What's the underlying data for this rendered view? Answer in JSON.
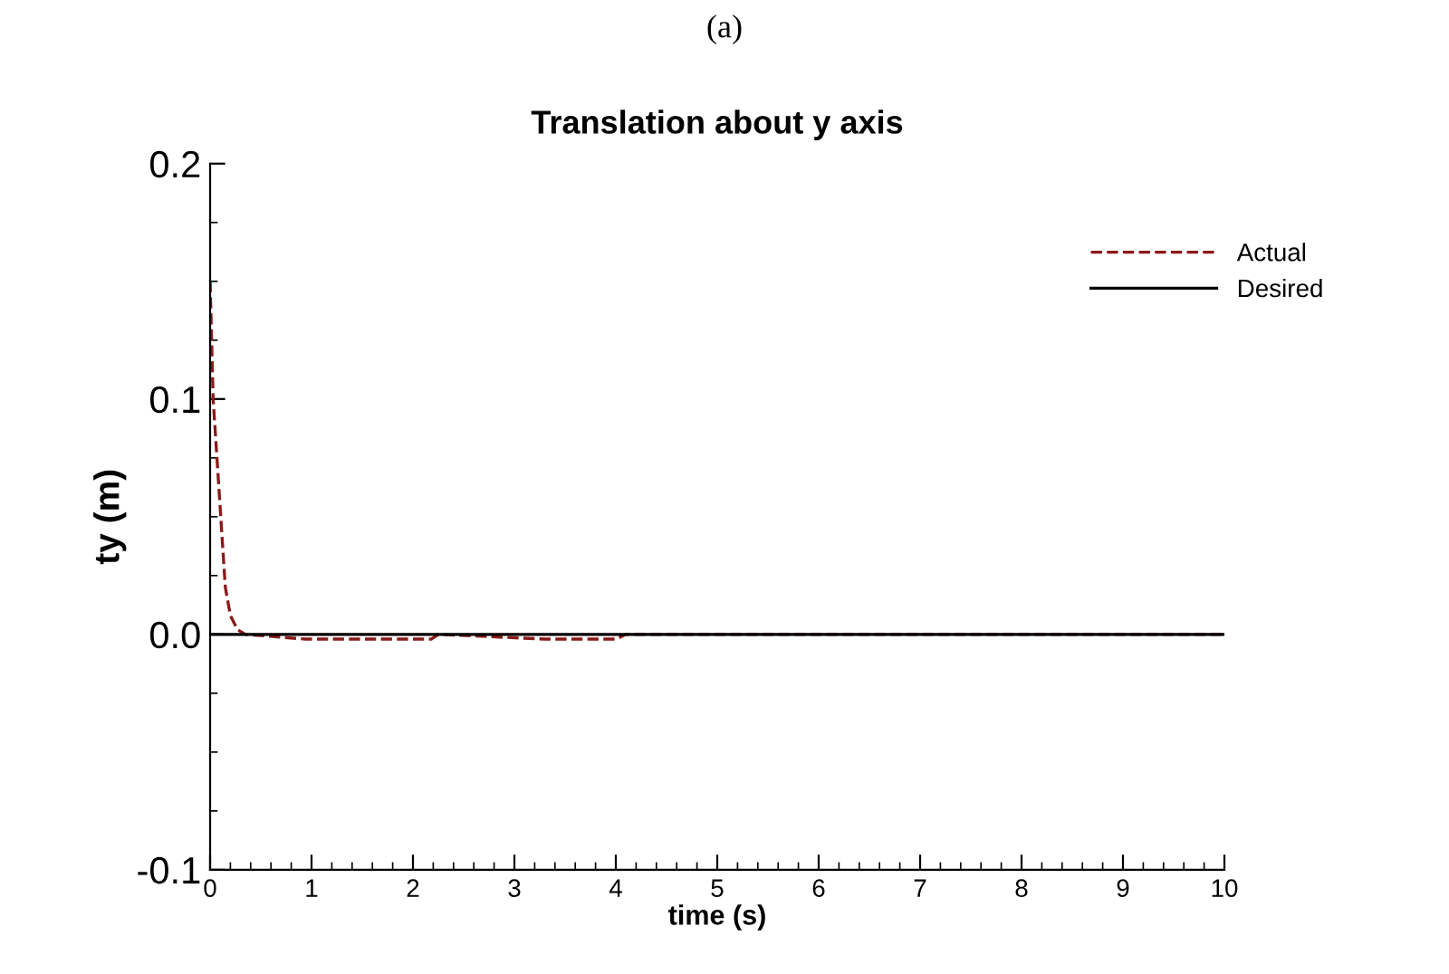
{
  "chart_data": {
    "type": "line",
    "title": "Translation about y axis",
    "xlabel": "time (s)",
    "ylabel": "ty (m)",
    "annotations": [
      "(a)"
    ],
    "xlim": [
      0,
      10
    ],
    "xticks": [
      0,
      1,
      2,
      3,
      4,
      5,
      6,
      7,
      8,
      9,
      10
    ],
    "ylim": [
      -0.1,
      0.2
    ],
    "yticks": [
      {
        "value": -0.1,
        "label": "-0.1"
      },
      {
        "value": 0.0,
        "label": "0.0"
      },
      {
        "value": 0.1,
        "label": "0.1"
      },
      {
        "value": 0.2,
        "label": "0.2"
      }
    ],
    "grid": false,
    "legend": "top right",
    "series": [
      {
        "name": "Actual",
        "color": "#8b1a1a",
        "line_style": "dashed",
        "x": [
          0,
          0.03,
          0.09,
          0.12,
          0.15,
          0.2,
          0.27,
          0.35,
          0.94,
          2.18,
          2.25,
          3.3,
          4.0,
          4.1,
          10
        ],
        "values": [
          0.15,
          0.1,
          0.06,
          0.04,
          0.02,
          0.008,
          0.002,
          0,
          -0.002,
          -0.002,
          0,
          -0.002,
          -0.002,
          0,
          0
        ]
      },
      {
        "name": "Desired",
        "color": "#000000",
        "line_style": "solid",
        "x": [
          0,
          10
        ],
        "values": [
          0,
          0
        ]
      }
    ]
  }
}
